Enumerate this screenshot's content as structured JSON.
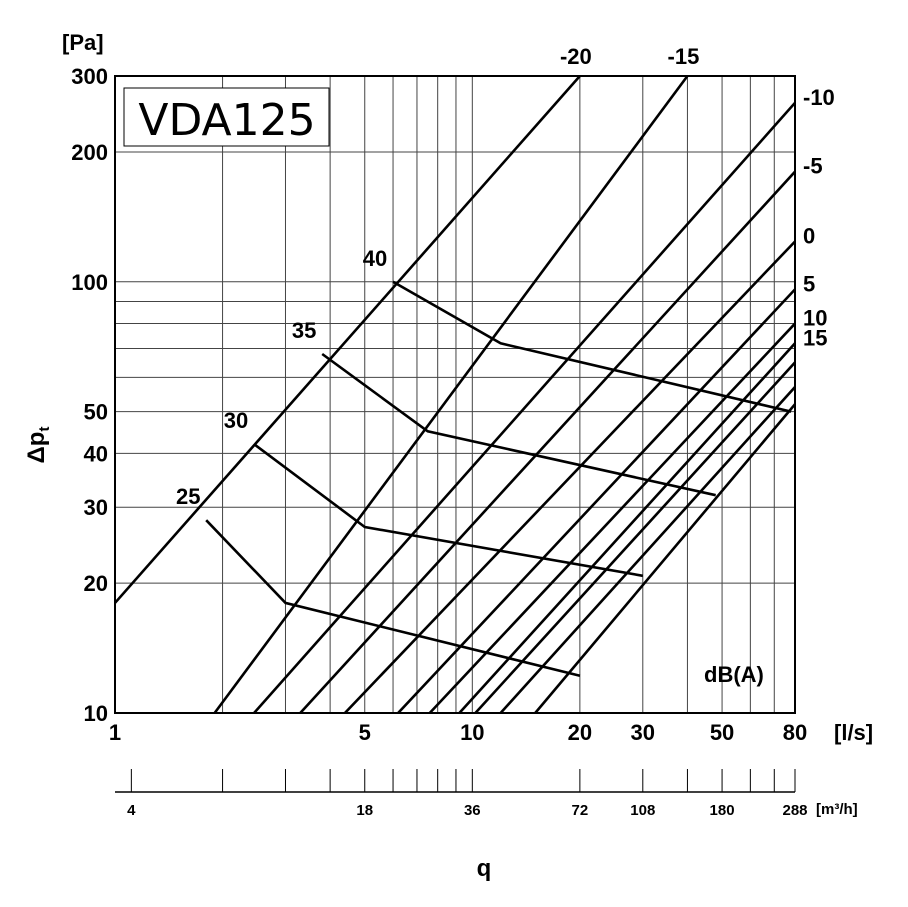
{
  "chart_data": {
    "type": "line",
    "title": "VDA125",
    "xlabel": "q",
    "ylabel": "Δpt",
    "x_unit": "[l/s]",
    "y_unit": "[Pa]",
    "x_secondary_unit": "[m³/h]",
    "x_scale": "log",
    "y_scale": "log",
    "xlim": [
      1,
      80
    ],
    "ylim": [
      10,
      300
    ],
    "grid": true,
    "x_ticks": [
      1,
      5,
      10,
      20,
      30,
      50,
      80
    ],
    "x_tick_labels": [
      "1",
      "5",
      "10",
      "20",
      "30",
      "50",
      "80"
    ],
    "y_ticks": [
      10,
      20,
      30,
      40,
      50,
      100,
      200,
      300
    ],
    "y_tick_labels": [
      "10",
      "20",
      "30",
      "40",
      "50",
      "100",
      "200",
      "300"
    ],
    "x_grid": [
      1,
      2,
      3,
      4,
      5,
      6,
      7,
      8,
      9,
      10,
      20,
      30,
      40,
      50,
      60,
      70,
      80
    ],
    "y_grid": [
      10,
      20,
      30,
      40,
      50,
      60,
      70,
      80,
      90,
      100,
      200,
      300
    ],
    "secondary_ticks": [
      {
        "m3h": 4,
        "label": "4"
      },
      {
        "m3h": 7.2,
        "label": ""
      },
      {
        "m3h": 10.8,
        "label": ""
      },
      {
        "m3h": 14.4,
        "label": ""
      },
      {
        "m3h": 18,
        "label": "18"
      },
      {
        "m3h": 21.6,
        "label": ""
      },
      {
        "m3h": 25.2,
        "label": ""
      },
      {
        "m3h": 28.8,
        "label": ""
      },
      {
        "m3h": 32.4,
        "label": ""
      },
      {
        "m3h": 36,
        "label": "36"
      },
      {
        "m3h": 72,
        "label": "72"
      },
      {
        "m3h": 108,
        "label": "108"
      },
      {
        "m3h": 144,
        "label": ""
      },
      {
        "m3h": 180,
        "label": "180"
      },
      {
        "m3h": 216,
        "label": ""
      },
      {
        "m3h": 252,
        "label": ""
      },
      {
        "m3h": 288,
        "label": "288"
      }
    ],
    "setting_lines_label": "dB(A)",
    "setting_lines": [
      {
        "name": "-20",
        "points": [
          [
            1,
            18
          ],
          [
            20,
            300
          ]
        ]
      },
      {
        "name": "-15",
        "points": [
          [
            1.9,
            10
          ],
          [
            40,
            300
          ]
        ]
      },
      {
        "name": "-10",
        "points": [
          [
            2.45,
            10
          ],
          [
            80,
            260
          ]
        ]
      },
      {
        "name": "-5",
        "points": [
          [
            3.3,
            10
          ],
          [
            80,
            180
          ]
        ]
      },
      {
        "name": "0",
        "points": [
          [
            4.4,
            10
          ],
          [
            80,
            124
          ]
        ]
      },
      {
        "name": "5",
        "points": [
          [
            6.2,
            10
          ],
          [
            80,
            96
          ]
        ]
      },
      {
        "name": "10",
        "points": [
          [
            7.6,
            10
          ],
          [
            80,
            80
          ]
        ]
      },
      {
        "name": "15",
        "points": [
          [
            9.2,
            10
          ],
          [
            80,
            72
          ]
        ]
      },
      {
        "name": "",
        "points": [
          [
            10.2,
            10
          ],
          [
            80,
            65
          ]
        ]
      },
      {
        "name": "",
        "points": [
          [
            12,
            10
          ],
          [
            80,
            57
          ]
        ]
      },
      {
        "name": "",
        "points": [
          [
            15,
            10
          ],
          [
            80,
            52
          ]
        ]
      }
    ],
    "sound_curves": [
      {
        "name": "25",
        "points": [
          [
            1.8,
            28
          ],
          [
            3,
            18
          ],
          [
            20,
            12.2
          ]
        ]
      },
      {
        "name": "30",
        "points": [
          [
            2.45,
            42
          ],
          [
            5,
            27
          ],
          [
            30,
            20.8
          ]
        ]
      },
      {
        "name": "35",
        "points": [
          [
            3.8,
            68
          ],
          [
            7.5,
            45
          ],
          [
            48,
            32
          ]
        ]
      },
      {
        "name": "40",
        "points": [
          [
            6,
            100
          ],
          [
            12,
            72
          ],
          [
            78,
            50
          ]
        ]
      }
    ]
  }
}
